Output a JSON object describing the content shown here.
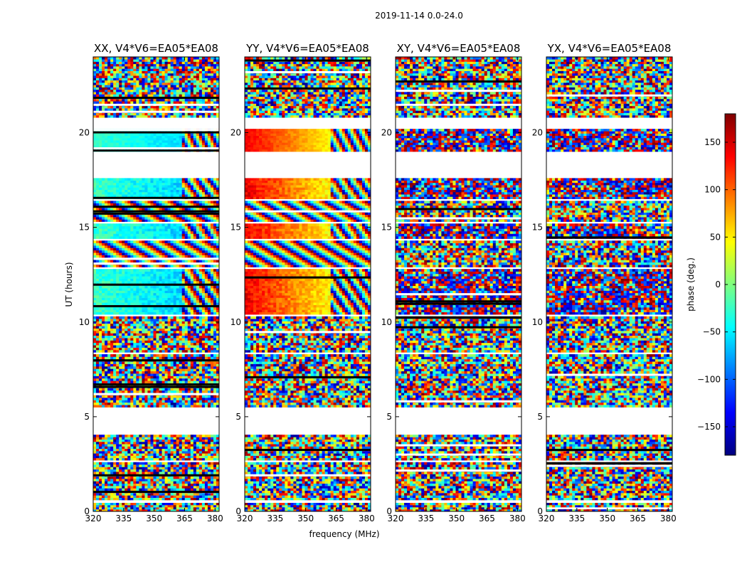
{
  "figure": {
    "suptitle": "2019-11-14 0.0-24.0",
    "xlabel": "frequency (MHz)",
    "ylabel": "UT (hours)"
  },
  "colorbar": {
    "label": "phase (deg.)",
    "range": [
      -180,
      180
    ],
    "ticks": [
      150,
      100,
      50,
      0,
      -50,
      -100,
      -150
    ],
    "tick_labels": [
      "150",
      "100",
      "50",
      "0",
      "−50",
      "−100",
      "−150"
    ],
    "colormap": "jet",
    "colors": [
      "#00007f",
      "#0000ff",
      "#007fff",
      "#00ffff",
      "#7fff7f",
      "#ffff00",
      "#ff7f00",
      "#ff0000",
      "#7f0000"
    ]
  },
  "chart_data": {
    "type": "heatmap",
    "x_range_mhz": [
      320,
      382
    ],
    "y_range_hours": [
      0,
      24
    ],
    "x_ticks": [
      320,
      335,
      350,
      365,
      380
    ],
    "x_tick_labels": [
      "320",
      "335",
      "350",
      "365",
      "380"
    ],
    "y_ticks": [
      0,
      5,
      10,
      15,
      20
    ],
    "y_tick_labels": [
      "0",
      "5",
      "10",
      "15",
      "20"
    ],
    "panels": [
      {
        "id": "xx",
        "title": "XX, V4*V6=EA05*EA08",
        "pol": "XX",
        "base_phase": -25,
        "gradient_end": -110,
        "smooth_until": 363
      },
      {
        "id": "yy",
        "title": "YY, V4*V6=EA05*EA08",
        "pol": "YY",
        "base_phase": 140,
        "gradient_end": -110,
        "smooth_until": 362
      },
      {
        "id": "xy",
        "title": "XY, V4*V6=EA05*EA08",
        "pol": "XY",
        "base_phase": null,
        "gradient_end": null,
        "smooth_until": null
      },
      {
        "id": "yx",
        "title": "YX, V4*V6=EA05*EA08",
        "pol": "YX",
        "base_phase": null,
        "gradient_end": null,
        "smooth_until": null
      }
    ],
    "data_blocks_hours": [
      [
        0.0,
        0.45,
        "noisy"
      ],
      [
        0.6,
        2.6,
        "noisy"
      ],
      [
        2.7,
        4.05,
        "noisy"
      ],
      [
        5.5,
        8.3,
        "dense"
      ],
      [
        8.4,
        10.3,
        "noisy"
      ],
      [
        10.4,
        12.8,
        "smooth"
      ],
      [
        12.9,
        14.3,
        "fringe"
      ],
      [
        14.4,
        15.2,
        "smooth"
      ],
      [
        15.3,
        16.4,
        "fringe"
      ],
      [
        16.5,
        17.6,
        "smooth"
      ],
      [
        19.0,
        20.2,
        "clean"
      ],
      [
        20.8,
        24.0,
        "noisy"
      ]
    ]
  }
}
